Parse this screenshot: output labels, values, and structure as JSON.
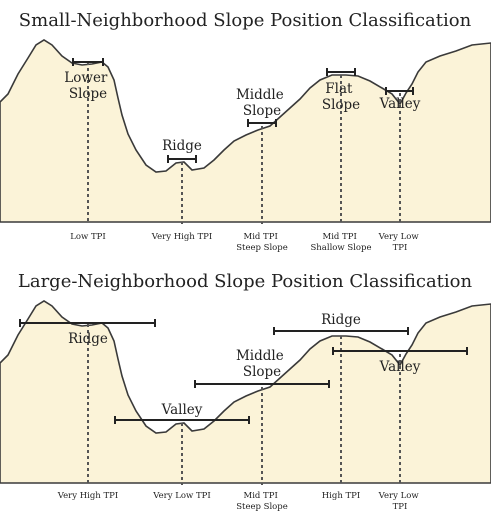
{
  "diagram_color": {
    "terrain_fill": "#fbf3d8",
    "outline": "#3a3a3a"
  },
  "top_panel": {
    "title": "Small-Neighborhood Slope Position Classification",
    "labels": [
      {
        "lines": [
          "Lower",
          "Slope"
        ]
      },
      {
        "lines": [
          "Ridge"
        ]
      },
      {
        "lines": [
          "Middle",
          "Slope"
        ]
      },
      {
        "lines": [
          "Flat",
          "Slope"
        ]
      },
      {
        "lines": [
          "Valley"
        ]
      }
    ],
    "tpi_labels": [
      {
        "lines": [
          "Low TPI"
        ]
      },
      {
        "lines": [
          "Very High TPI"
        ]
      },
      {
        "lines": [
          "Mid TPI",
          "Steep Slope"
        ]
      },
      {
        "lines": [
          "Mid TPI",
          "Shallow Slope"
        ]
      },
      {
        "lines": [
          "Very Low",
          "TPI"
        ]
      }
    ]
  },
  "bottom_panel": {
    "title": "Large-Neighborhood Slope Position Classification",
    "labels": [
      {
        "lines": [
          "Ridge"
        ]
      },
      {
        "lines": [
          "Valley"
        ]
      },
      {
        "lines": [
          "Middle",
          "Slope"
        ]
      },
      {
        "lines": [
          "Ridge"
        ]
      },
      {
        "lines": [
          "Valley"
        ]
      }
    ],
    "tpi_labels": [
      {
        "lines": [
          "Very High TPI"
        ]
      },
      {
        "lines": [
          "Very Low TPI"
        ]
      },
      {
        "lines": [
          "Mid TPI",
          "Steep Slope"
        ]
      },
      {
        "lines": [
          "High TPI"
        ]
      },
      {
        "lines": [
          "Very Low",
          "TPI"
        ]
      }
    ]
  }
}
